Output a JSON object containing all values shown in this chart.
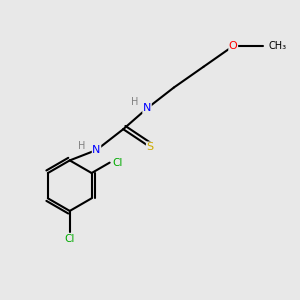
{
  "background_color": "#e8e8e8",
  "atom_colors": {
    "C": "#000000",
    "H": "#808080",
    "N": "#0000ff",
    "O": "#ff0000",
    "S": "#ccaa00",
    "Cl": "#00aa00"
  },
  "bond_color": "#000000",
  "bond_width": 1.5,
  "figsize": [
    3.0,
    3.0
  ],
  "dpi": 100
}
